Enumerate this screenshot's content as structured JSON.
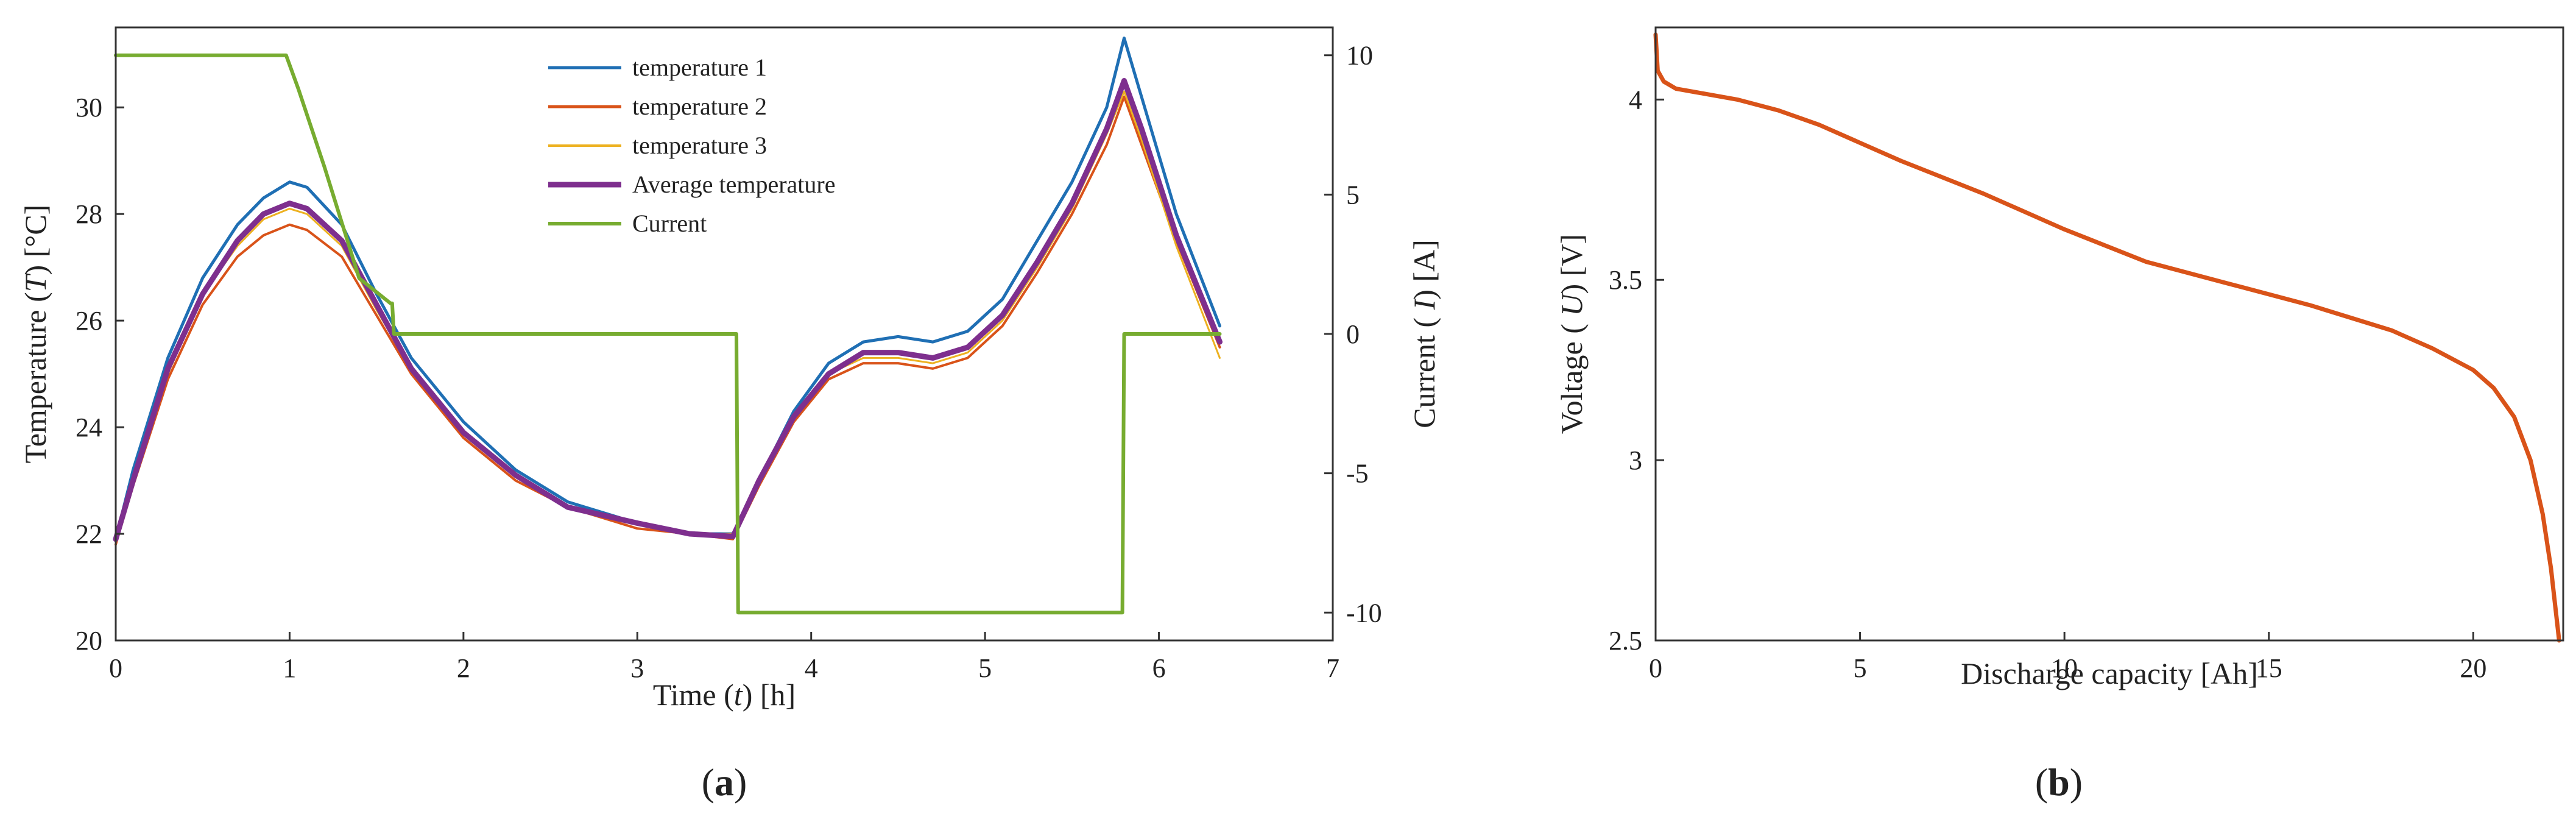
{
  "chart_data": [
    {
      "id": "a",
      "type": "line",
      "panel_label": {
        "open": "(",
        "letter": "a",
        "close": ")"
      },
      "xlabel": {
        "pre": "Time (",
        "italic": "t",
        "post": ") [h]"
      },
      "ylabel_left": {
        "pre": "Temperature (",
        "italic": "T",
        "post": ") [°C]"
      },
      "ylabel_right": {
        "pre": "Current ( ",
        "italic": "I",
        "post": ") [A]"
      },
      "xlim": [
        0,
        7
      ],
      "ylim_left": [
        20,
        31.5
      ],
      "ylim_right": [
        -11,
        11
      ],
      "xticks": [
        0,
        1,
        2,
        3,
        4,
        5,
        6,
        7
      ],
      "yticks_left": [
        20,
        22,
        24,
        26,
        28,
        30
      ],
      "yticks_right": [
        10,
        5,
        0,
        -5,
        -10
      ],
      "yticks_right_labels": [
        "10",
        "5",
        "0",
        "-5",
        "-10"
      ],
      "legend_position": "top-center",
      "colors": {
        "t1": "#1f6fb4",
        "t2": "#d95319",
        "t3": "#edb120",
        "avg": "#7e2f8e",
        "current": "#77ac30",
        "axis": "#333333"
      },
      "series": [
        {
          "key": "t1",
          "name": "temperature 1",
          "axis": "left",
          "width": 5,
          "x": [
            0,
            0.1,
            0.3,
            0.5,
            0.7,
            0.85,
            1.0,
            1.1,
            1.3,
            1.5,
            1.7,
            2.0,
            2.3,
            2.6,
            3.0,
            3.3,
            3.55,
            3.7,
            3.9,
            4.1,
            4.3,
            4.5,
            4.7,
            4.9,
            5.1,
            5.3,
            5.5,
            5.7,
            5.8,
            5.9,
            6.1,
            6.35
          ],
          "y": [
            21.9,
            23.2,
            25.3,
            26.8,
            27.8,
            28.3,
            28.6,
            28.5,
            27.8,
            26.5,
            25.3,
            24.1,
            23.2,
            22.6,
            22.2,
            22.0,
            22.0,
            23.0,
            24.3,
            25.2,
            25.6,
            25.7,
            25.6,
            25.8,
            26.4,
            27.5,
            28.6,
            30.0,
            31.3,
            30.2,
            28.0,
            25.9
          ]
        },
        {
          "key": "t2",
          "name": "temperature 2",
          "axis": "left",
          "width": 4,
          "x": [
            0,
            0.1,
            0.3,
            0.5,
            0.7,
            0.85,
            1.0,
            1.1,
            1.3,
            1.5,
            1.7,
            2.0,
            2.3,
            2.6,
            3.0,
            3.3,
            3.55,
            3.7,
            3.9,
            4.1,
            4.3,
            4.5,
            4.7,
            4.9,
            5.1,
            5.3,
            5.5,
            5.7,
            5.8,
            5.9,
            6.1,
            6.35
          ],
          "y": [
            21.8,
            22.9,
            24.9,
            26.3,
            27.2,
            27.6,
            27.8,
            27.7,
            27.2,
            26.1,
            25.0,
            23.8,
            23.0,
            22.5,
            22.1,
            22.0,
            21.9,
            22.9,
            24.1,
            24.9,
            25.2,
            25.2,
            25.1,
            25.3,
            25.9,
            26.9,
            28.0,
            29.3,
            30.2,
            29.3,
            27.5,
            25.5
          ]
        },
        {
          "key": "t3",
          "name": "temperature 3",
          "axis": "left",
          "width": 3,
          "x": [
            0,
            0.1,
            0.3,
            0.5,
            0.7,
            0.85,
            1.0,
            1.1,
            1.3,
            1.5,
            1.7,
            2.0,
            2.3,
            2.6,
            3.0,
            3.3,
            3.55,
            3.7,
            3.9,
            4.1,
            4.3,
            4.5,
            4.7,
            4.9,
            5.1,
            5.3,
            5.5,
            5.7,
            5.8,
            5.9,
            6.1,
            6.35
          ],
          "y": [
            21.9,
            23.0,
            25.0,
            26.5,
            27.4,
            27.9,
            28.1,
            28.0,
            27.4,
            26.2,
            25.1,
            23.9,
            23.1,
            22.5,
            22.2,
            22.0,
            22.0,
            23.0,
            24.2,
            25.0,
            25.3,
            25.3,
            25.2,
            25.4,
            26.0,
            27.0,
            28.1,
            29.5,
            30.3,
            29.4,
            27.4,
            25.3
          ]
        },
        {
          "key": "avg",
          "name": "Average temperature",
          "axis": "left",
          "width": 9,
          "x": [
            0,
            0.1,
            0.3,
            0.5,
            0.7,
            0.85,
            1.0,
            1.1,
            1.3,
            1.5,
            1.7,
            2.0,
            2.3,
            2.6,
            3.0,
            3.3,
            3.55,
            3.7,
            3.9,
            4.1,
            4.3,
            4.5,
            4.7,
            4.9,
            5.1,
            5.3,
            5.5,
            5.7,
            5.8,
            5.9,
            6.1,
            6.35
          ],
          "y": [
            21.9,
            23.0,
            25.1,
            26.5,
            27.5,
            28.0,
            28.2,
            28.1,
            27.5,
            26.3,
            25.1,
            23.9,
            23.1,
            22.5,
            22.2,
            22.0,
            21.95,
            23.0,
            24.2,
            25.0,
            25.4,
            25.4,
            25.3,
            25.5,
            26.1,
            27.1,
            28.2,
            29.6,
            30.5,
            29.6,
            27.6,
            25.6
          ]
        },
        {
          "key": "current",
          "name": "Current",
          "axis": "right",
          "width": 6,
          "x": [
            0,
            0.98,
            1.05,
            1.2,
            1.4,
            1.58,
            1.59,
            1.6,
            3.56,
            3.57,
            3.58,
            5.78,
            5.79,
            5.8,
            6.35
          ],
          "y": [
            10,
            10,
            8.8,
            6.0,
            2.0,
            1.1,
            1.1,
            0,
            0,
            0,
            -10,
            -10,
            -10,
            0,
            0
          ]
        }
      ]
    },
    {
      "id": "b",
      "type": "line",
      "panel_label": {
        "open": "(",
        "letter": "b",
        "close": ")"
      },
      "xlabel": {
        "pre": "Discharge capacity [Ah]",
        "italic": "",
        "post": ""
      },
      "ylabel_left": {
        "pre": "Voltage ( ",
        "italic": "U",
        "post": ") [V]"
      },
      "xlim": [
        0,
        22.2
      ],
      "ylim": [
        2.5,
        4.2
      ],
      "xticks": [
        0,
        5,
        10,
        15,
        20
      ],
      "yticks": [
        2.5,
        3,
        3.5,
        4
      ],
      "yticks_labels": [
        "2.5",
        "3",
        "3.5",
        "4"
      ],
      "colors": {
        "line": "#d95319",
        "axis": "#333333"
      },
      "series": [
        {
          "name": "Voltage",
          "width": 7,
          "x": [
            0,
            0.05,
            0.2,
            0.5,
            1,
            2,
            3,
            4,
            5,
            6,
            8,
            10,
            12,
            14,
            16,
            18,
            19,
            20,
            20.5,
            21,
            21.4,
            21.7,
            21.9,
            22.0,
            22.1
          ],
          "y": [
            4.18,
            4.08,
            4.05,
            4.03,
            4.02,
            4.0,
            3.97,
            3.93,
            3.88,
            3.83,
            3.74,
            3.64,
            3.55,
            3.49,
            3.43,
            3.36,
            3.31,
            3.25,
            3.2,
            3.12,
            3.0,
            2.85,
            2.7,
            2.6,
            2.5
          ]
        }
      ]
    }
  ]
}
